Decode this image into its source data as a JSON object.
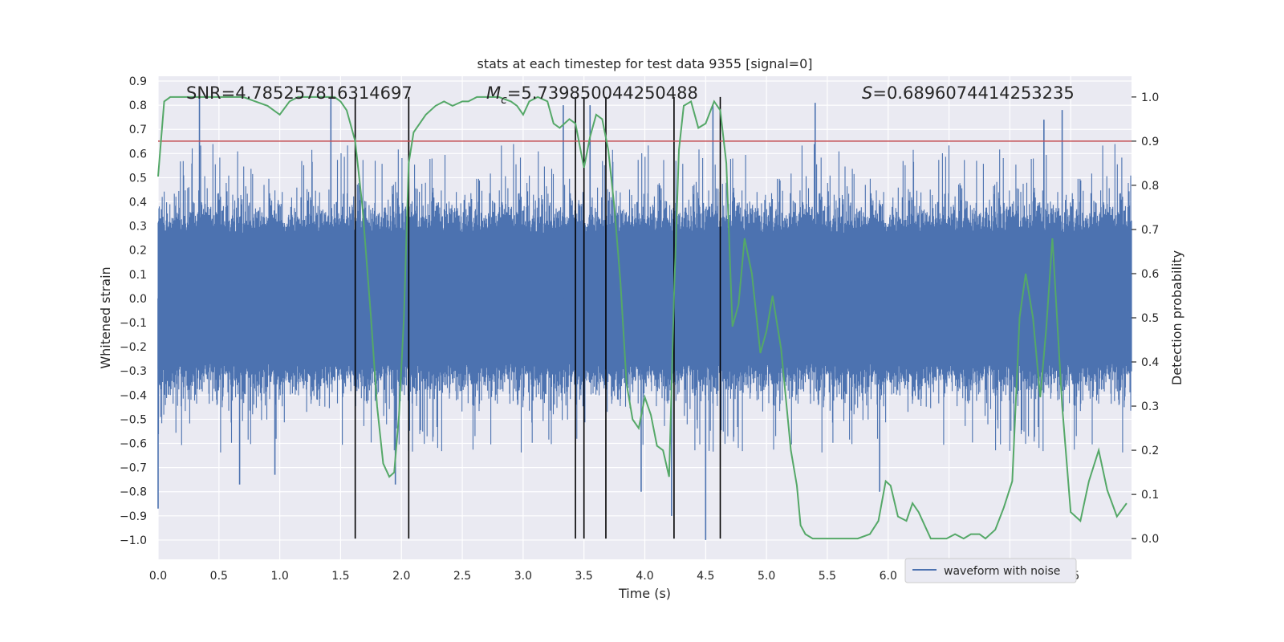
{
  "chart_data": {
    "type": "line",
    "title": "stats at each timestep for test data 9355 [signal=0]",
    "xlabel": "Time (s)",
    "ylabel": "Whitened strain",
    "y2label": "Detection probability",
    "xlim": [
      0.0,
      8.0
    ],
    "ylim": [
      -1.08,
      0.92
    ],
    "y2lim": [
      -0.047,
      1.047
    ],
    "grid": true,
    "legend_position": "lower-right",
    "x_ticks": [
      "0.0",
      "0.5",
      "1.0",
      "1.5",
      "2.0",
      "2.5",
      "3.0",
      "3.5",
      "4.0",
      "4.5",
      "5.0",
      "5.5",
      "6.0",
      "6.5",
      "7.0",
      "7.5"
    ],
    "y_ticks": [
      "0.9",
      "0.8",
      "0.7",
      "0.6",
      "0.5",
      "0.4",
      "0.3",
      "0.2",
      "0.1",
      "0.0",
      "-0.1",
      "-0.2",
      "-0.3",
      "-0.4",
      "-0.5",
      "-0.6",
      "-0.7",
      "-0.8",
      "-0.9",
      "-1.0"
    ],
    "y2_ticks": [
      "1.0",
      "0.9",
      "0.8",
      "0.7",
      "0.6",
      "0.5",
      "0.4",
      "0.3",
      "0.2",
      "0.1",
      "0.0"
    ],
    "annotations": {
      "snr": "SNR=4.785257816314697",
      "mc_symbol": "M",
      "mc_subscript": "c",
      "mc_value": "=5.739850044250488",
      "s_symbol": "S",
      "s_value": "=0.6896074414253235"
    },
    "threshold": 0.9,
    "vlines": [
      1.62,
      2.06,
      3.43,
      3.5,
      3.68,
      4.24,
      4.62
    ],
    "series": [
      {
        "name": "waveform with noise",
        "kind": "noise",
        "color": "#4c72b0",
        "x_range": [
          0.0,
          8.0
        ],
        "spikes": [
          {
            "x": 0.34,
            "y": 0.83
          },
          {
            "x": 1.42,
            "y": 0.83
          },
          {
            "x": 3.33,
            "y": 0.8
          },
          {
            "x": 3.55,
            "y": 0.8
          },
          {
            "x": 4.56,
            "y": 0.8
          },
          {
            "x": 5.4,
            "y": 0.81
          },
          {
            "x": 7.43,
            "y": 0.78
          },
          {
            "x": 7.28,
            "y": 0.74
          },
          {
            "x": 0.67,
            "y": -0.77
          },
          {
            "x": 0.96,
            "y": -0.73
          },
          {
            "x": 1.95,
            "y": -0.77
          },
          {
            "x": 3.97,
            "y": -0.8
          },
          {
            "x": 4.5,
            "y": -1.0
          },
          {
            "x": 4.22,
            "y": -0.9
          },
          {
            "x": 5.93,
            "y": -0.8
          },
          {
            "x": 0.0,
            "y": -0.87
          }
        ]
      },
      {
        "name": "",
        "kind": "probability",
        "color": "#55a868",
        "x": [
          0.0,
          0.05,
          0.1,
          0.15,
          0.25,
          0.35,
          0.5,
          0.6,
          0.7,
          0.8,
          0.9,
          1.0,
          1.08,
          1.15,
          1.3,
          1.45,
          1.5,
          1.55,
          1.62,
          1.68,
          1.75,
          1.8,
          1.85,
          1.9,
          1.94,
          1.98,
          2.02,
          2.06,
          2.1,
          2.15,
          2.2,
          2.28,
          2.35,
          2.42,
          2.5,
          2.55,
          2.62,
          2.7,
          2.8,
          2.9,
          2.95,
          3.0,
          3.05,
          3.12,
          3.2,
          3.25,
          3.3,
          3.38,
          3.43,
          3.5,
          3.55,
          3.6,
          3.65,
          3.7,
          3.75,
          3.8,
          3.85,
          3.9,
          3.95,
          4.0,
          4.05,
          4.1,
          4.15,
          4.2,
          4.24,
          4.28,
          4.32,
          4.38,
          4.44,
          4.5,
          4.57,
          4.62,
          4.67,
          4.72,
          4.77,
          4.82,
          4.88,
          4.95,
          5.0,
          5.05,
          5.12,
          5.2,
          5.25,
          5.28,
          5.32,
          5.38,
          5.45,
          5.55,
          5.65,
          5.75,
          5.85,
          5.92,
          5.98,
          6.02,
          6.08,
          6.15,
          6.2,
          6.25,
          6.3,
          6.35,
          6.4,
          6.48,
          6.55,
          6.62,
          6.68,
          6.75,
          6.8,
          6.88,
          6.95,
          7.02,
          7.08,
          7.13,
          7.19,
          7.25,
          7.3,
          7.35,
          7.43,
          7.5,
          7.58,
          7.65,
          7.73,
          7.8,
          7.88,
          7.96
        ],
        "y": [
          0.82,
          0.99,
          1.0,
          1.0,
          1.0,
          1.0,
          1.0,
          1.0,
          1.0,
          0.99,
          0.98,
          0.96,
          0.99,
          1.0,
          1.0,
          1.0,
          0.99,
          0.97,
          0.9,
          0.75,
          0.5,
          0.3,
          0.17,
          0.14,
          0.15,
          0.28,
          0.5,
          0.85,
          0.92,
          0.94,
          0.96,
          0.98,
          0.99,
          0.98,
          0.99,
          0.99,
          1.0,
          1.0,
          1.0,
          0.99,
          0.98,
          0.96,
          0.99,
          1.0,
          0.99,
          0.94,
          0.93,
          0.95,
          0.94,
          0.84,
          0.91,
          0.96,
          0.95,
          0.88,
          0.75,
          0.58,
          0.35,
          0.27,
          0.25,
          0.32,
          0.28,
          0.21,
          0.2,
          0.14,
          0.55,
          0.88,
          0.98,
          0.99,
          0.93,
          0.94,
          0.99,
          0.97,
          0.85,
          0.48,
          0.53,
          0.68,
          0.6,
          0.42,
          0.47,
          0.55,
          0.43,
          0.2,
          0.12,
          0.03,
          0.01,
          0.0,
          0.0,
          0.0,
          0.0,
          0.0,
          0.01,
          0.04,
          0.13,
          0.12,
          0.05,
          0.04,
          0.08,
          0.06,
          0.03,
          0.0,
          0.0,
          0.0,
          0.01,
          0.0,
          0.01,
          0.01,
          0.0,
          0.02,
          0.07,
          0.13,
          0.5,
          0.6,
          0.5,
          0.32,
          0.48,
          0.68,
          0.3,
          0.06,
          0.04,
          0.13,
          0.2,
          0.11,
          0.05,
          0.08
        ]
      }
    ]
  },
  "legend": {
    "label": "waveform with noise"
  }
}
